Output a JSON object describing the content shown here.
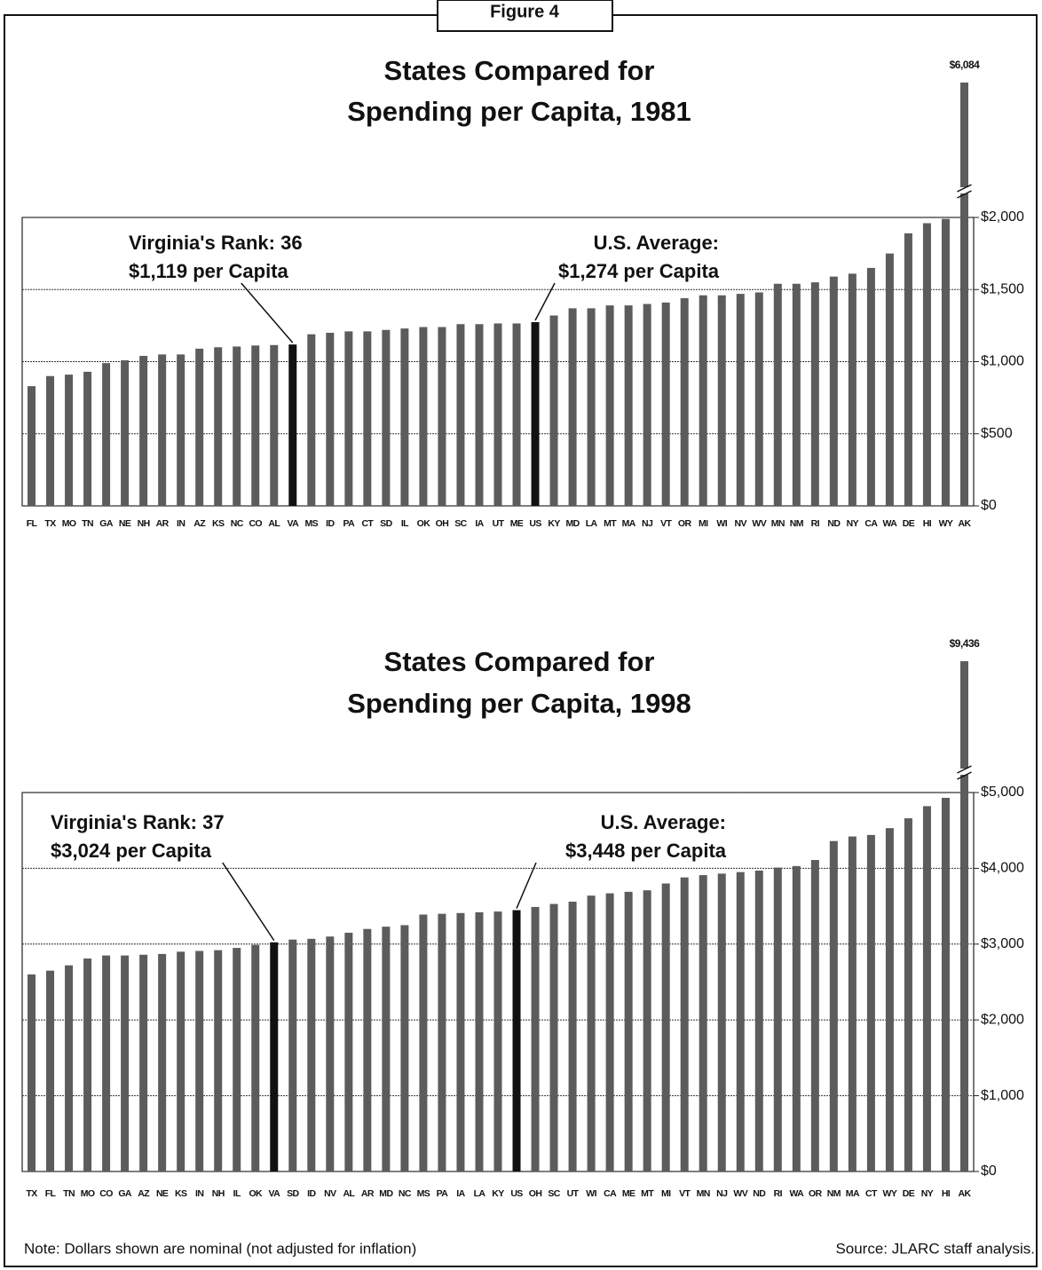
{
  "figure_label": "Figure 4",
  "chart_data": [
    {
      "type": "bar",
      "title": [
        "States Compared for",
        "Spending per Capita, 1981"
      ],
      "categories": [
        "FL",
        "TX",
        "MO",
        "TN",
        "GA",
        "NE",
        "NH",
        "AR",
        "IN",
        "AZ",
        "KS",
        "NC",
        "CO",
        "AL",
        "VA",
        "MS",
        "ID",
        "PA",
        "CT",
        "SD",
        "IL",
        "OK",
        "OH",
        "SC",
        "IA",
        "UT",
        "ME",
        "US",
        "KY",
        "MD",
        "LA",
        "MT",
        "MA",
        "NJ",
        "VT",
        "OR",
        "MI",
        "WI",
        "NV",
        "WV",
        "MN",
        "NM",
        "RI",
        "ND",
        "NY",
        "CA",
        "WA",
        "DE",
        "HI",
        "WY",
        "AK"
      ],
      "values": [
        830,
        900,
        910,
        930,
        990,
        1010,
        1040,
        1050,
        1050,
        1090,
        1100,
        1105,
        1112,
        1115,
        1119,
        1190,
        1200,
        1210,
        1210,
        1220,
        1230,
        1240,
        1240,
        1260,
        1260,
        1265,
        1265,
        1274,
        1320,
        1370,
        1370,
        1390,
        1390,
        1400,
        1410,
        1440,
        1460,
        1460,
        1470,
        1480,
        1540,
        1540,
        1550,
        1590,
        1610,
        1650,
        1750,
        1890,
        1960,
        1990,
        6084
      ],
      "value_labels": [
        null,
        null,
        null,
        null,
        null,
        null,
        null,
        null,
        null,
        null,
        null,
        null,
        null,
        null,
        null,
        null,
        null,
        null,
        null,
        null,
        null,
        null,
        null,
        null,
        null,
        null,
        null,
        null,
        null,
        null,
        null,
        null,
        null,
        null,
        null,
        null,
        null,
        null,
        null,
        null,
        null,
        null,
        null,
        null,
        null,
        null,
        null,
        null,
        null,
        null,
        "$6,084"
      ],
      "color": "#5c5c5c",
      "highlight": {
        "indices": [
          14,
          27
        ],
        "color": "#111111"
      },
      "ylim": [
        0,
        2000
      ],
      "yticks": [
        {
          "value": 0,
          "label": "$0"
        },
        {
          "value": 500,
          "label": "$500"
        },
        {
          "value": 1000,
          "label": "$1,000"
        },
        {
          "value": 1500,
          "label": "$1,500"
        },
        {
          "value": 2000,
          "label": "$2,000"
        }
      ],
      "grid": true,
      "annotations": [
        {
          "lines": [
            "Virginia's Rank: 36",
            "$1,119 per Capita"
          ],
          "target": 14
        },
        {
          "lines": [
            "U.S. Average:",
            "$1,274 per Capita"
          ],
          "target": 27
        }
      ]
    },
    {
      "type": "bar",
      "title": [
        "States Compared for",
        "Spending per Capita, 1998"
      ],
      "categories": [
        "TX",
        "FL",
        "TN",
        "MO",
        "CO",
        "GA",
        "AZ",
        "NE",
        "KS",
        "IN",
        "NH",
        "IL",
        "OK",
        "VA",
        "SD",
        "ID",
        "NV",
        "AL",
        "AR",
        "MD",
        "NC",
        "MS",
        "PA",
        "IA",
        "LA",
        "KY",
        "US",
        "OH",
        "SC",
        "UT",
        "WI",
        "CA",
        "ME",
        "MT",
        "MI",
        "VT",
        "MN",
        "NJ",
        "WV",
        "ND",
        "RI",
        "WA",
        "OR",
        "NM",
        "MA",
        "CT",
        "WY",
        "DE",
        "NY",
        "HI",
        "AK"
      ],
      "values": [
        2600,
        2650,
        2720,
        2810,
        2850,
        2850,
        2860,
        2870,
        2900,
        2910,
        2920,
        2950,
        2990,
        3024,
        3060,
        3070,
        3100,
        3150,
        3200,
        3230,
        3250,
        3390,
        3400,
        3410,
        3420,
        3430,
        3448,
        3490,
        3530,
        3560,
        3640,
        3670,
        3690,
        3710,
        3800,
        3880,
        3910,
        3930,
        3950,
        3970,
        4010,
        4030,
        4110,
        4360,
        4420,
        4440,
        4530,
        4660,
        4820,
        4930,
        9436
      ],
      "value_labels": [
        null,
        null,
        null,
        null,
        null,
        null,
        null,
        null,
        null,
        null,
        null,
        null,
        null,
        null,
        null,
        null,
        null,
        null,
        null,
        null,
        null,
        null,
        null,
        null,
        null,
        null,
        null,
        null,
        null,
        null,
        null,
        null,
        null,
        null,
        null,
        null,
        null,
        null,
        null,
        null,
        null,
        null,
        null,
        null,
        null,
        null,
        null,
        null,
        null,
        null,
        "$9,436"
      ],
      "color": "#5c5c5c",
      "highlight": {
        "indices": [
          13,
          26
        ],
        "color": "#111111"
      },
      "ylim": [
        0,
        5000
      ],
      "yticks": [
        {
          "value": 0,
          "label": "$0"
        },
        {
          "value": 1000,
          "label": "$1,000"
        },
        {
          "value": 2000,
          "label": "$2,000"
        },
        {
          "value": 3000,
          "label": "$3,000"
        },
        {
          "value": 4000,
          "label": "$4,000"
        },
        {
          "value": 5000,
          "label": "$5,000"
        }
      ],
      "grid": true,
      "annotations": [
        {
          "lines": [
            "Virginia's Rank: 37",
            "$3,024 per Capita"
          ],
          "target": 13
        },
        {
          "lines": [
            "U.S. Average:",
            "$3,448 per Capita"
          ],
          "target": 26
        }
      ]
    }
  ],
  "note": "Note:  Dollars shown are nominal (not adjusted for inflation)",
  "source": "Source:  JLARC staff analysis."
}
